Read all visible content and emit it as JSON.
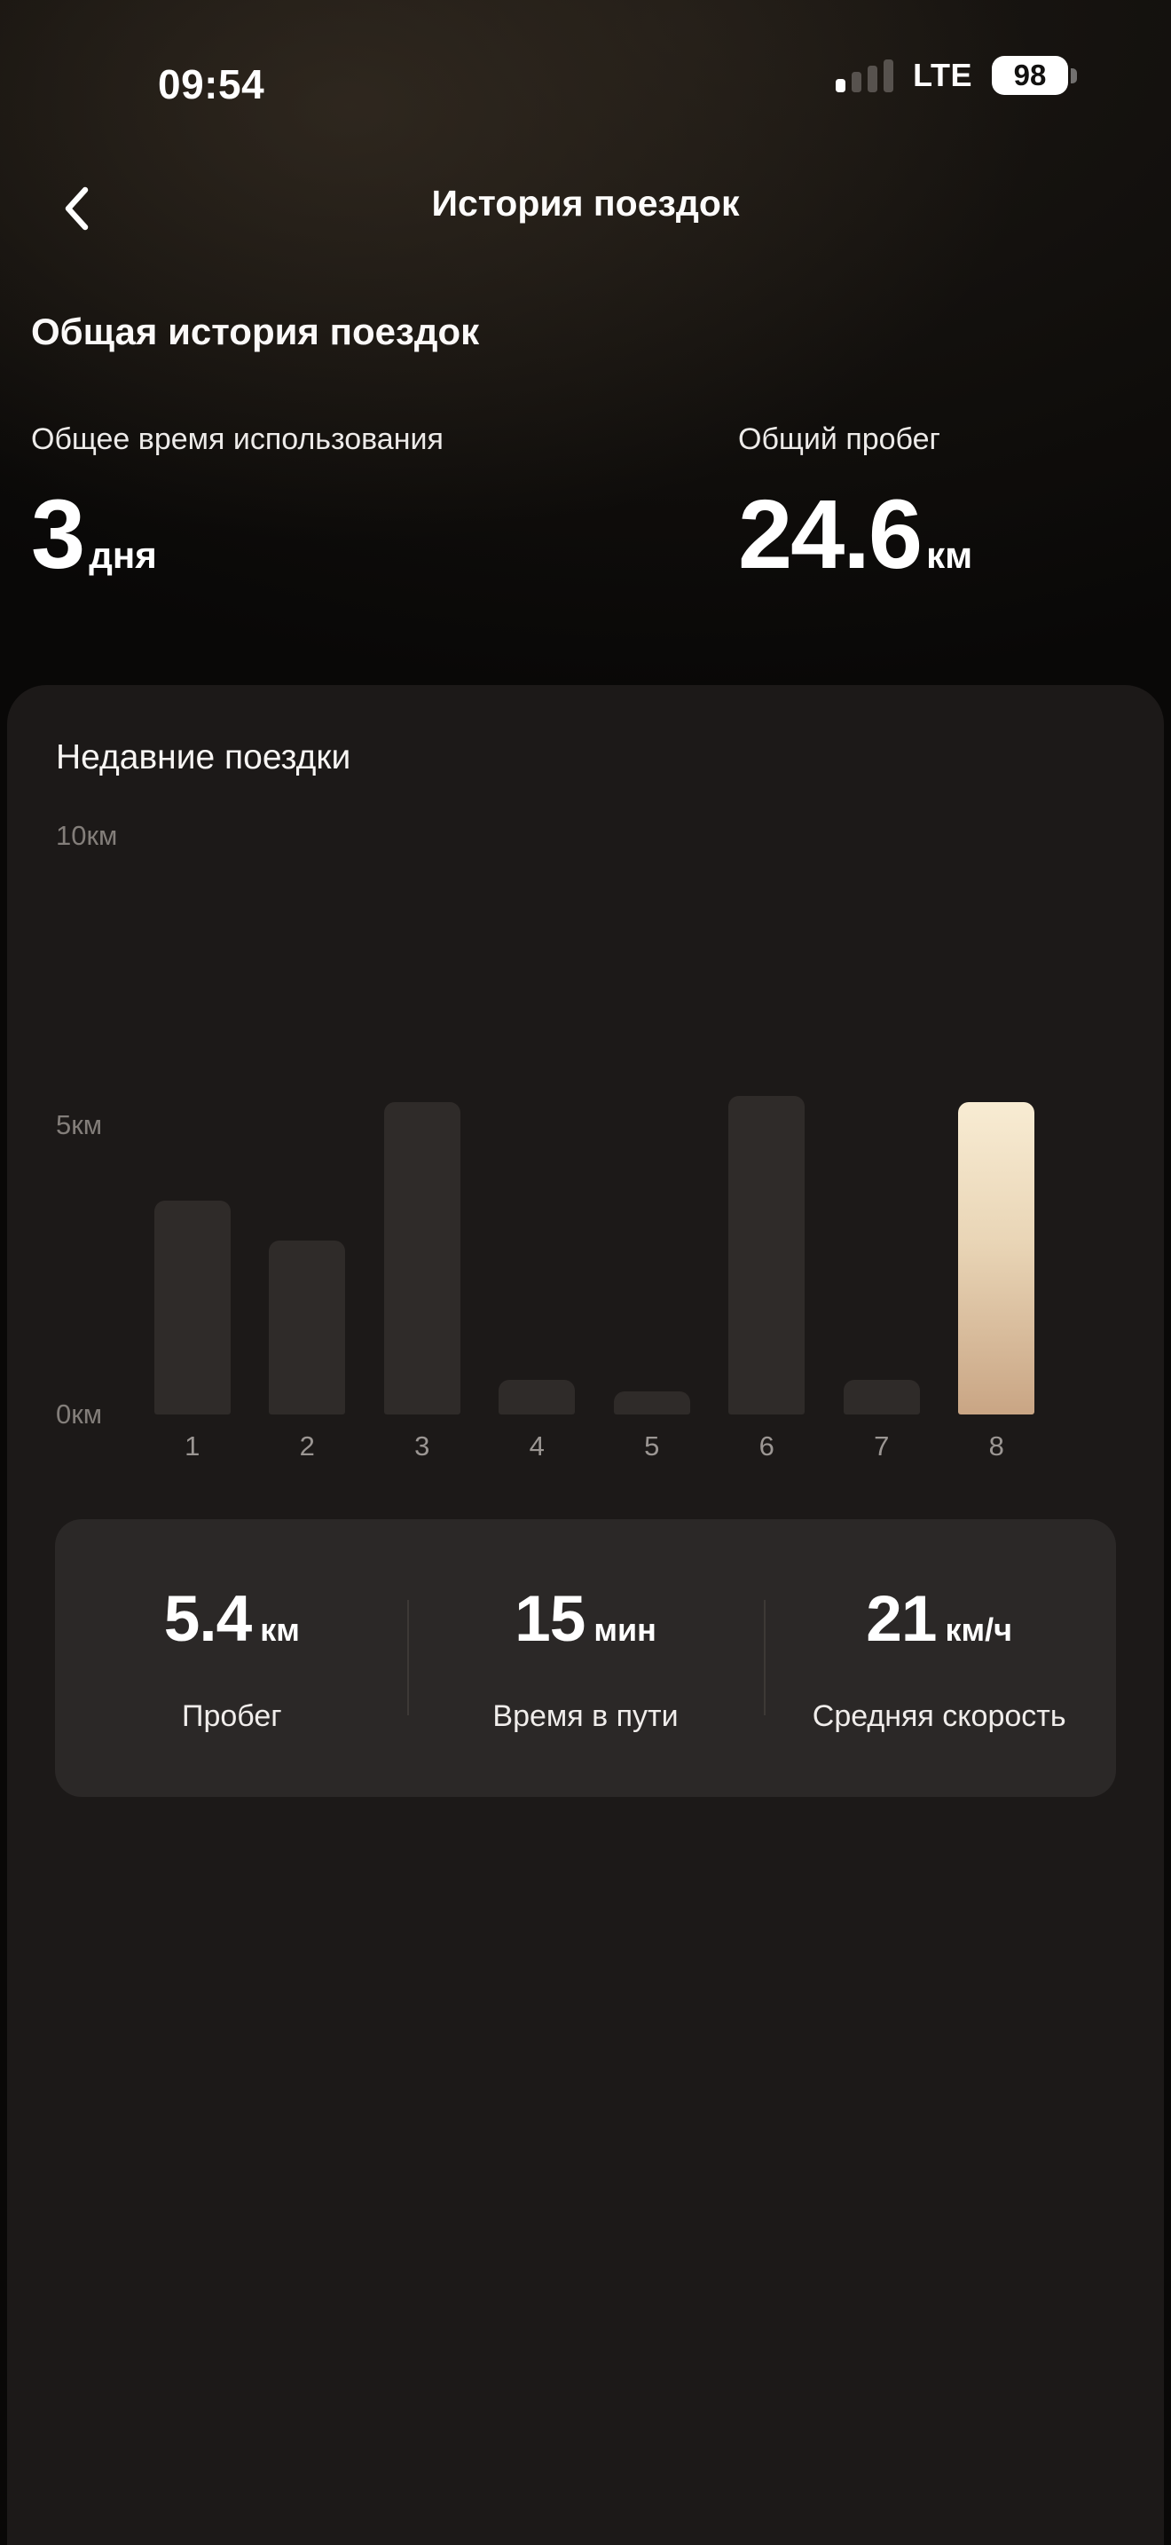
{
  "status_bar": {
    "time": "09:54",
    "network": "LTE",
    "battery_percent": "98"
  },
  "header": {
    "title": "История поездок"
  },
  "summary": {
    "title": "Общая история поездок",
    "stats": [
      {
        "label": "Общее время использования",
        "value": "3",
        "unit": "дня"
      },
      {
        "label": "Общий пробег",
        "value": "24.6",
        "unit": "км"
      }
    ]
  },
  "recent": {
    "title": "Недавние поездки",
    "chart_data": {
      "type": "bar",
      "categories": [
        "1",
        "2",
        "3",
        "4",
        "5",
        "6",
        "7",
        "8"
      ],
      "values": [
        3.7,
        3.0,
        5.4,
        0.6,
        0.4,
        5.5,
        0.6,
        5.4
      ],
      "unit": "км",
      "title": "Недавние поездки",
      "xlabel": "",
      "ylabel": "",
      "ylim": [
        0,
        10
      ],
      "yticks": [
        {
          "value": 0,
          "label": "0км"
        },
        {
          "value": 5,
          "label": "5км"
        },
        {
          "value": 10,
          "label": "10км"
        }
      ],
      "selected_index": 7,
      "grid": false,
      "legend": false
    },
    "selected_trip": {
      "stats": [
        {
          "value": "5.4",
          "unit": "км",
          "label": "Пробег"
        },
        {
          "value": "15",
          "unit": "мин",
          "label": "Время в пути"
        },
        {
          "value": "21",
          "unit": "км/ч",
          "label": "Средняя скорость"
        }
      ]
    }
  },
  "colors": {
    "bar_default": "#2f2b29",
    "bar_selected_top": "#f8ecd3",
    "bar_selected_bottom": "#c9a584",
    "card_bg": "#1c1918",
    "stats_card_bg": "#2b2827"
  }
}
